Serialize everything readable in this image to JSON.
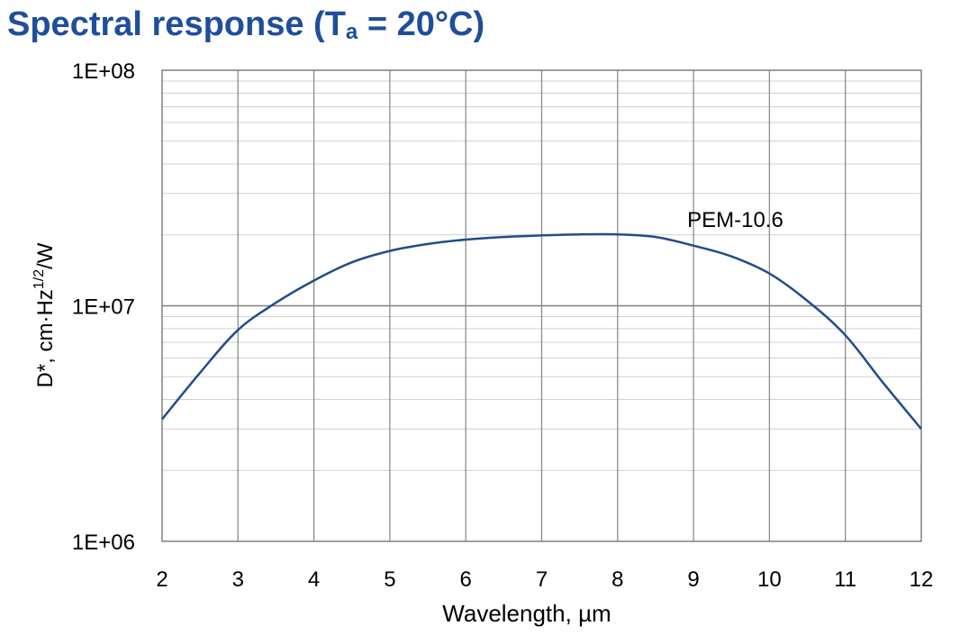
{
  "title": {
    "prefix": "Spectral response (T",
    "subscript": "a",
    "suffix": " = 20°C)"
  },
  "chart_data": {
    "type": "line",
    "title": "Spectral response (Ta = 20°C)",
    "xlabel": "Wavelength, µm",
    "ylabel": {
      "main": "D*, cm·Hz",
      "sup": "1/2",
      "tail": "/W"
    },
    "x_ticks": [
      "2",
      "3",
      "4",
      "5",
      "6",
      "7",
      "8",
      "9",
      "10",
      "11",
      "12"
    ],
    "y_ticks": [
      "1E+06",
      "1E+07",
      "1E+08"
    ],
    "xlim": [
      2,
      12
    ],
    "ylim": [
      1000000,
      100000000
    ],
    "y_scale": "log",
    "grid": true,
    "series": [
      {
        "name": "PEM-10.6",
        "color": "#1f4e8c",
        "x": [
          2,
          2.5,
          3,
          3.5,
          4,
          4.5,
          5,
          5.5,
          6,
          6.5,
          7,
          7.5,
          8,
          8.5,
          9,
          9.5,
          10,
          10.5,
          11,
          11.5,
          12
        ],
        "y": [
          3300000,
          5200000,
          7900000,
          10300000,
          12800000,
          15300000,
          17100000,
          18300000,
          19100000,
          19600000,
          19900000,
          20100000,
          20100000,
          19600000,
          18000000,
          16200000,
          13700000,
          10500000,
          7500000,
          4700000,
          3000000
        ]
      }
    ]
  }
}
